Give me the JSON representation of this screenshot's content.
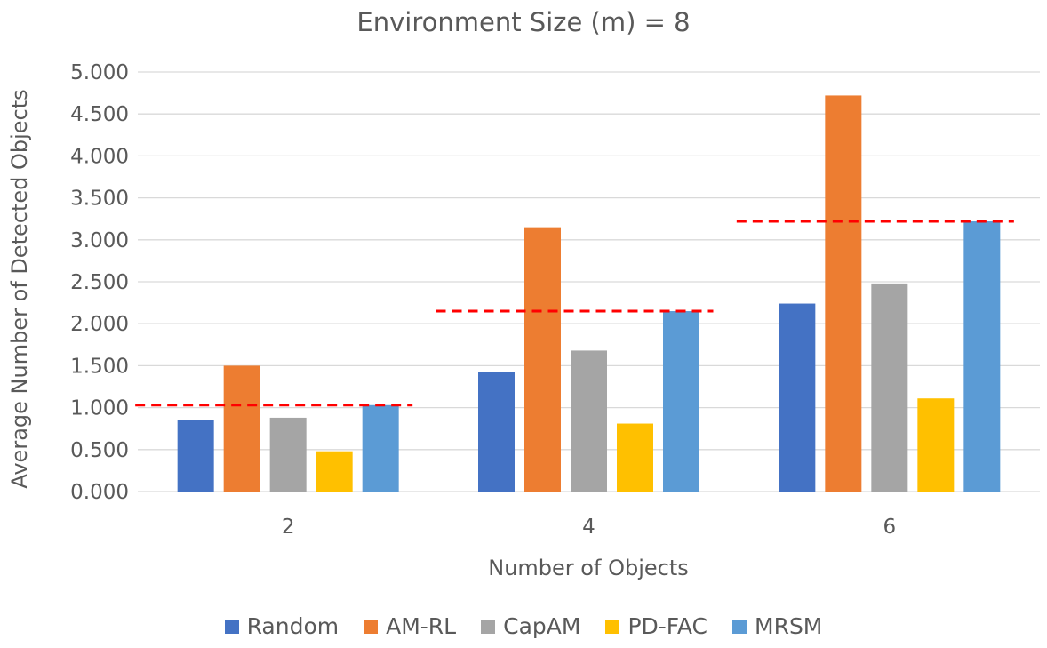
{
  "chart_data": {
    "type": "bar",
    "title": "Environment Size (m) = 8",
    "xlabel": "Number of Objects",
    "ylabel": "Average Number of Detected Objects",
    "categories": [
      "2",
      "4",
      "6"
    ],
    "ylim": [
      0,
      5
    ],
    "yticks": [
      "0.000",
      "0.500",
      "1.000",
      "1.500",
      "2.000",
      "2.500",
      "3.000",
      "3.500",
      "4.000",
      "4.500",
      "5.000"
    ],
    "grid": true,
    "legend_position": "bottom",
    "series": [
      {
        "name": "Random",
        "color": "#4472C4",
        "values": [
          0.85,
          1.43,
          2.24
        ]
      },
      {
        "name": "AM-RL",
        "color": "#ED7D31",
        "values": [
          1.5,
          3.15,
          4.72
        ]
      },
      {
        "name": "CapAM",
        "color": "#A5A5A5",
        "values": [
          0.88,
          1.68,
          2.48
        ]
      },
      {
        "name": "PD-FAC",
        "color": "#FFC000",
        "values": [
          0.48,
          0.81,
          1.11
        ]
      },
      {
        "name": "MRSM",
        "color": "#5B9BD5",
        "values": [
          1.03,
          2.15,
          3.22
        ]
      }
    ],
    "reference_lines": {
      "color": "#FF0000",
      "style": "dashed",
      "values": [
        1.03,
        2.15,
        3.22
      ]
    }
  }
}
